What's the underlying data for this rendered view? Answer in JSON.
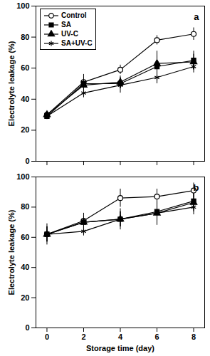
{
  "chart_data": [
    {
      "type": "line",
      "title": "a",
      "y_label": "Electrolyte leakage (%)",
      "x": [
        0,
        2,
        4,
        6,
        8
      ],
      "xlim": [
        -0.6,
        8.6
      ],
      "xticks": [
        0,
        2,
        4,
        6,
        8
      ],
      "ylim": [
        0,
        100
      ],
      "yticks": [
        0,
        20,
        40,
        60,
        80,
        100
      ],
      "tick_labels": "y",
      "legend": "top-left",
      "series": [
        {
          "name": "Control",
          "color": "#000000",
          "marker": "circle-open",
          "values": [
            30,
            51,
            59,
            78,
            82
          ],
          "errors": [
            2,
            5,
            3,
            3,
            4
          ]
        },
        {
          "name": "SA",
          "color": "#000000",
          "marker": "square",
          "values": [
            29,
            50,
            50,
            61,
            65
          ],
          "errors": [
            2,
            4,
            3,
            10,
            6
          ]
        },
        {
          "name": "UV-C",
          "color": "#000000",
          "marker": "triangle",
          "values": [
            30,
            49,
            51,
            63,
            64
          ],
          "errors": [
            2,
            3,
            4,
            5,
            5
          ]
        },
        {
          "name": "SA+UV-C",
          "color": "#000000",
          "marker": "asterisk",
          "values": [
            29,
            44,
            49,
            54,
            61
          ],
          "errors": [
            2,
            3,
            5,
            4,
            4
          ]
        }
      ]
    },
    {
      "type": "line",
      "title": "b",
      "x_label": "Storage time (day)",
      "y_label": "Electrolyte leakage (%)",
      "x": [
        0,
        2,
        4,
        6,
        8
      ],
      "xlim": [
        -0.6,
        8.6
      ],
      "xticks": [
        0,
        2,
        4,
        6,
        8
      ],
      "ylim": [
        0,
        100
      ],
      "yticks": [
        0,
        20,
        40,
        60,
        80,
        100
      ],
      "series": [
        {
          "name": "Control",
          "color": "#000000",
          "marker": "circle-open",
          "values": [
            62,
            71,
            86,
            87,
            91
          ],
          "errors": [
            7,
            5,
            6,
            5,
            5
          ]
        },
        {
          "name": "SA",
          "color": "#000000",
          "marker": "square",
          "values": [
            62,
            70,
            72,
            77,
            84
          ],
          "errors": [
            5,
            4,
            7,
            6,
            5
          ]
        },
        {
          "name": "UV-C",
          "color": "#000000",
          "marker": "triangle",
          "values": [
            62,
            70,
            72,
            76,
            83
          ],
          "errors": [
            5,
            3,
            5,
            8,
            6
          ]
        },
        {
          "name": "SA+UV-C",
          "color": "#000000",
          "marker": "asterisk",
          "values": [
            62,
            64,
            72,
            76,
            80
          ],
          "errors": [
            5,
            3,
            5,
            5,
            5
          ]
        }
      ]
    }
  ]
}
